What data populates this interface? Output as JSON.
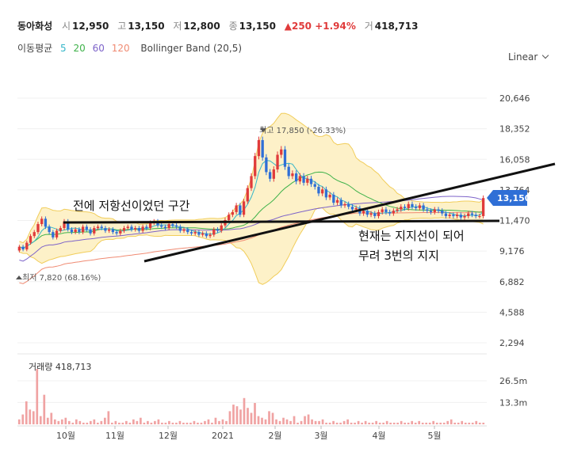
{
  "header": {
    "stock_name": "동아화성",
    "open_label": "시",
    "open": "12,950",
    "high_label": "고",
    "high": "13,150",
    "low_label": "저",
    "low": "12,800",
    "close_label": "종",
    "close": "13,150",
    "change": "▲250 +1.94%",
    "volume_label": "거",
    "volume": "418,713",
    "ma_label": "이동평균",
    "ma_5": "5",
    "ma_20": "20",
    "ma_60": "60",
    "ma_120": "120",
    "bollinger": "Bollinger Band (20,5)",
    "scale_option": "Linear"
  },
  "colors": {
    "up": "#e03b3b",
    "down": "#2f6fd6",
    "ma5": "#35b6c9",
    "ma20": "#3fb24a",
    "ma60": "#7d63c9",
    "ma120": "#f08b73",
    "band_fill": "#fdf1c8",
    "band_line": "#f1cd5a",
    "price_tag": "#2f6fd6",
    "volume": "#f0a3a3"
  },
  "chart_data": {
    "type": "candlestick",
    "y_ticks": [
      "20,646",
      "18,352",
      "16,058",
      "13,764",
      "11,470",
      "9,176",
      "6,882",
      "4,588",
      "2,294"
    ],
    "ylim": [
      2294,
      20646
    ],
    "months": [
      "10월",
      "11월",
      "12월",
      "2021",
      "2월",
      "3월",
      "4월",
      "5월"
    ],
    "current_price_tag": "13,150",
    "max_label": "최고 17,850 (-26.33%)",
    "min_label": "최저 7,820 (68.16%)",
    "approx_close_series": [
      9500,
      9300,
      9800,
      10300,
      10600,
      11200,
      11600,
      11000,
      10600,
      10200,
      10700,
      10900,
      11400,
      10800,
      10600,
      10800,
      10600,
      11000,
      10800,
      10500,
      10900,
      11000,
      10900,
      10700,
      10800,
      10600,
      10500,
      10700,
      10900,
      11000,
      10800,
      10900,
      10700,
      11000,
      10900,
      11300,
      11400,
      11100,
      11000,
      10900,
      11200,
      11100,
      11000,
      10700,
      10800,
      10600,
      10500,
      10600,
      10400,
      10500,
      10300,
      10400,
      10800,
      10700,
      11100,
      11500,
      11900,
      12100,
      12600,
      11900,
      12900,
      13900,
      14800,
      16300,
      17500,
      16200,
      15100,
      14600,
      15300,
      16400,
      16800,
      15500,
      14800,
      15000,
      14400,
      14800,
      14300,
      14600,
      14200,
      14000,
      13500,
      13800,
      13200,
      13400,
      12800,
      13000,
      12600,
      12700,
      12500,
      12300,
      12400,
      12000,
      12200,
      11900,
      12000,
      11800,
      12100,
      12300,
      12100,
      12000,
      12200,
      12300,
      12500,
      12400,
      12700,
      12500,
      12400,
      12600,
      12300,
      12200,
      12100,
      12300,
      12200,
      12000,
      11800,
      11900,
      11800,
      11900,
      11700,
      11800,
      12000,
      11900,
      11800,
      11800,
      13150
    ]
  },
  "volume": {
    "title": "거래량 418,713",
    "y_ticks": [
      "26.5m",
      "13.3m"
    ],
    "approx_values_m": [
      3,
      6,
      14,
      9,
      8,
      35,
      5,
      18,
      4,
      7,
      3,
      2,
      3,
      4,
      2,
      1,
      3,
      2,
      1,
      1,
      2,
      3,
      1,
      2,
      4,
      8,
      1,
      2,
      1,
      1,
      2,
      1,
      3,
      2,
      4,
      1,
      2,
      1,
      2,
      3,
      1,
      1,
      2,
      1,
      1,
      2,
      1,
      1,
      1,
      2,
      1,
      1,
      2,
      3,
      1,
      4,
      2,
      3,
      2,
      8,
      12,
      11,
      9,
      16,
      10,
      7,
      13,
      5,
      4,
      3,
      8,
      7,
      3,
      2,
      4,
      3,
      2,
      5,
      1,
      2,
      5,
      6,
      3,
      2,
      2,
      3,
      1,
      1,
      2,
      1,
      1,
      2,
      3,
      1,
      1,
      2,
      1,
      2,
      1,
      1,
      2,
      1,
      1,
      2,
      1,
      1,
      1,
      2,
      1,
      1,
      2,
      1,
      2,
      1,
      1,
      1,
      2,
      1,
      1,
      1,
      2,
      3,
      1,
      1,
      2,
      1,
      1,
      1,
      2,
      1,
      1
    ]
  },
  "annotations": {
    "resistance_text": "전에 저항선이었던 구간",
    "support_text_1": "현재는 지지선이 되어",
    "support_text_2": "무려 3번의 지지"
  }
}
